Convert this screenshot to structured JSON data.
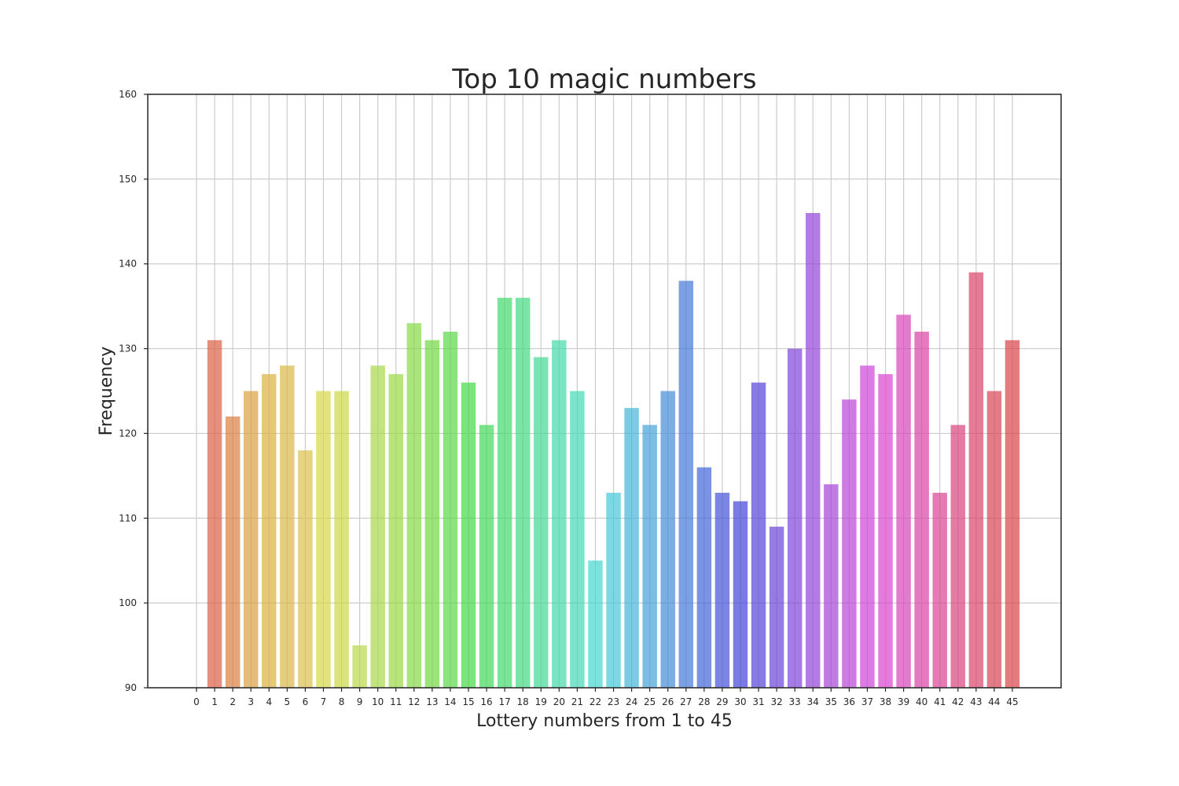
{
  "chart_data": {
    "type": "bar",
    "title": "Top 10 magic numbers",
    "xlabel": "Lottery numbers from 1 to 45",
    "ylabel": "Frequency",
    "ylim": [
      90,
      160
    ],
    "yticks": [
      90,
      100,
      110,
      120,
      130,
      140,
      150,
      160
    ],
    "xticks": [
      0,
      1,
      2,
      3,
      4,
      5,
      6,
      7,
      8,
      9,
      10,
      11,
      12,
      13,
      14,
      15,
      16,
      17,
      18,
      19,
      20,
      21,
      22,
      23,
      24,
      25,
      26,
      27,
      28,
      29,
      30,
      31,
      32,
      33,
      34,
      35,
      36,
      37,
      38,
      39,
      40,
      41,
      42,
      43,
      44,
      45
    ],
    "categories": [
      1,
      2,
      3,
      4,
      5,
      6,
      7,
      8,
      9,
      10,
      11,
      12,
      13,
      14,
      15,
      16,
      17,
      18,
      19,
      20,
      21,
      22,
      23,
      24,
      25,
      26,
      27,
      28,
      29,
      30,
      31,
      32,
      33,
      34,
      35,
      36,
      37,
      38,
      39,
      40,
      41,
      42,
      43,
      44,
      45
    ],
    "values": [
      131,
      122,
      125,
      127,
      128,
      118,
      125,
      125,
      95,
      128,
      127,
      133,
      131,
      132,
      126,
      121,
      136,
      136,
      129,
      131,
      125,
      105,
      113,
      123,
      121,
      125,
      138,
      116,
      113,
      112,
      126,
      109,
      130,
      146,
      114,
      124,
      128,
      127,
      134,
      132,
      113,
      121,
      139,
      125,
      131
    ],
    "colors": [
      "#db5f46",
      "#db7f40",
      "#db9f43",
      "#dbb040",
      "#dbb748",
      "#dbc04c",
      "#d6d745",
      "#cbd842",
      "#b8d84a",
      "#a8d84a",
      "#9ad845",
      "#84d845",
      "#6fd843",
      "#5ad846",
      "#43d846",
      "#43d85a",
      "#43d86e",
      "#43d882",
      "#43d896",
      "#43d8aa",
      "#43d8b3",
      "#43d5d0",
      "#43c9d8",
      "#43b5d8",
      "#43a1d8",
      "#438dd8",
      "#4379d8",
      "#4365d8",
      "#4351d8",
      "#4343d8",
      "#5743d8",
      "#6b43d8",
      "#7f43d8",
      "#9343d8",
      "#a743d8",
      "#bb43d8",
      "#cf43d8",
      "#d843cf",
      "#d843bb",
      "#d843a7",
      "#d84393",
      "#d8437f",
      "#d8436b",
      "#d84357",
      "#d84348"
    ],
    "bar_opacity": 0.7,
    "grid": true
  }
}
